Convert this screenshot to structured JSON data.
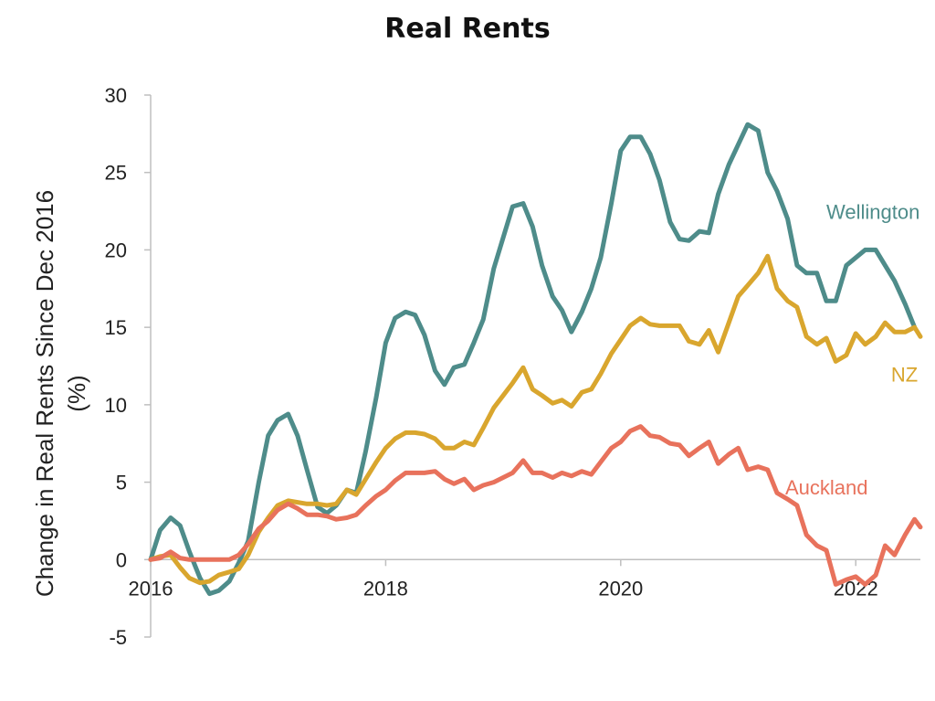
{
  "chart_data": {
    "type": "line",
    "title": "Real Rents",
    "ylabel_line1": "Change in Real Rents Since Dec 2016",
    "ylabel_line2": "(%)",
    "xlabel": "",
    "xlim": [
      2016.0,
      2022.55
    ],
    "ylim": [
      -5,
      30
    ],
    "y_ticks": [
      -5,
      0,
      5,
      10,
      15,
      20,
      25,
      30
    ],
    "x_ticks": [
      {
        "value": 2016,
        "label": "2016"
      },
      {
        "value": 2018,
        "label": "2018"
      },
      {
        "value": 2020,
        "label": "2020"
      },
      {
        "value": 2022,
        "label": "2022"
      }
    ],
    "grid": false,
    "legend": "inline labels",
    "series": [
      {
        "name": "Wellington",
        "color": "#4e8c8a",
        "points": [
          [
            2016.0,
            0
          ],
          [
            2016.08,
            1.9
          ],
          [
            2016.17,
            2.7
          ],
          [
            2016.25,
            2.2
          ],
          [
            2016.33,
            0.5
          ],
          [
            2016.42,
            -1.2
          ],
          [
            2016.5,
            -2.2
          ],
          [
            2016.58,
            -2.0
          ],
          [
            2016.67,
            -1.4
          ],
          [
            2016.75,
            -0.2
          ],
          [
            2016.83,
            1.2
          ],
          [
            2016.92,
            5.0
          ],
          [
            2017.0,
            8.0
          ],
          [
            2017.08,
            9.0
          ],
          [
            2017.17,
            9.4
          ],
          [
            2017.25,
            8.0
          ],
          [
            2017.33,
            5.8
          ],
          [
            2017.42,
            3.4
          ],
          [
            2017.5,
            3.0
          ],
          [
            2017.58,
            3.5
          ],
          [
            2017.67,
            4.5
          ],
          [
            2017.75,
            4.3
          ],
          [
            2017.83,
            7.0
          ],
          [
            2017.92,
            10.5
          ],
          [
            2018.0,
            14.0
          ],
          [
            2018.08,
            15.6
          ],
          [
            2018.17,
            16.0
          ],
          [
            2018.25,
            15.8
          ],
          [
            2018.33,
            14.5
          ],
          [
            2018.42,
            12.2
          ],
          [
            2018.5,
            11.3
          ],
          [
            2018.58,
            12.4
          ],
          [
            2018.67,
            12.6
          ],
          [
            2018.75,
            14.0
          ],
          [
            2018.83,
            15.5
          ],
          [
            2018.92,
            18.8
          ],
          [
            2019.0,
            20.8
          ],
          [
            2019.08,
            22.8
          ],
          [
            2019.17,
            23.0
          ],
          [
            2019.25,
            21.5
          ],
          [
            2019.33,
            19.0
          ],
          [
            2019.42,
            17.0
          ],
          [
            2019.5,
            16.1
          ],
          [
            2019.58,
            14.7
          ],
          [
            2019.67,
            16.0
          ],
          [
            2019.75,
            17.5
          ],
          [
            2019.83,
            19.5
          ],
          [
            2019.92,
            23.0
          ],
          [
            2020.0,
            26.4
          ],
          [
            2020.08,
            27.3
          ],
          [
            2020.17,
            27.3
          ],
          [
            2020.25,
            26.2
          ],
          [
            2020.33,
            24.5
          ],
          [
            2020.42,
            21.8
          ],
          [
            2020.5,
            20.7
          ],
          [
            2020.58,
            20.6
          ],
          [
            2020.67,
            21.2
          ],
          [
            2020.75,
            21.1
          ],
          [
            2020.83,
            23.6
          ],
          [
            2020.92,
            25.5
          ],
          [
            2021.0,
            26.8
          ],
          [
            2021.08,
            28.1
          ],
          [
            2021.17,
            27.7
          ],
          [
            2021.25,
            25.0
          ],
          [
            2021.33,
            23.8
          ],
          [
            2021.42,
            22.0
          ],
          [
            2021.5,
            19.0
          ],
          [
            2021.58,
            18.5
          ],
          [
            2021.67,
            18.5
          ],
          [
            2021.75,
            16.7
          ],
          [
            2021.83,
            16.7
          ],
          [
            2021.92,
            19.0
          ],
          [
            2022.0,
            19.5
          ],
          [
            2022.08,
            20.0
          ],
          [
            2022.17,
            20.0
          ],
          [
            2022.25,
            19.0
          ],
          [
            2022.33,
            18.0
          ],
          [
            2022.42,
            16.5
          ],
          [
            2022.5,
            15.0
          ]
        ]
      },
      {
        "name": "NZ",
        "color": "#d9a62e",
        "points": [
          [
            2016.0,
            0
          ],
          [
            2016.08,
            0.2
          ],
          [
            2016.17,
            0.3
          ],
          [
            2016.25,
            -0.5
          ],
          [
            2016.33,
            -1.2
          ],
          [
            2016.42,
            -1.5
          ],
          [
            2016.5,
            -1.4
          ],
          [
            2016.58,
            -1.0
          ],
          [
            2016.67,
            -0.8
          ],
          [
            2016.75,
            -0.6
          ],
          [
            2016.83,
            0.3
          ],
          [
            2016.92,
            1.8
          ],
          [
            2017.0,
            2.7
          ],
          [
            2017.08,
            3.5
          ],
          [
            2017.17,
            3.8
          ],
          [
            2017.25,
            3.7
          ],
          [
            2017.33,
            3.6
          ],
          [
            2017.42,
            3.6
          ],
          [
            2017.5,
            3.5
          ],
          [
            2017.58,
            3.6
          ],
          [
            2017.67,
            4.5
          ],
          [
            2017.75,
            4.2
          ],
          [
            2017.83,
            5.2
          ],
          [
            2017.92,
            6.3
          ],
          [
            2018.0,
            7.2
          ],
          [
            2018.08,
            7.8
          ],
          [
            2018.17,
            8.2
          ],
          [
            2018.25,
            8.2
          ],
          [
            2018.33,
            8.1
          ],
          [
            2018.42,
            7.8
          ],
          [
            2018.5,
            7.2
          ],
          [
            2018.58,
            7.2
          ],
          [
            2018.67,
            7.6
          ],
          [
            2018.75,
            7.4
          ],
          [
            2018.83,
            8.5
          ],
          [
            2018.92,
            9.8
          ],
          [
            2019.0,
            10.6
          ],
          [
            2019.08,
            11.4
          ],
          [
            2019.17,
            12.4
          ],
          [
            2019.25,
            11.0
          ],
          [
            2019.33,
            10.6
          ],
          [
            2019.42,
            10.1
          ],
          [
            2019.5,
            10.3
          ],
          [
            2019.58,
            9.9
          ],
          [
            2019.67,
            10.8
          ],
          [
            2019.75,
            11.0
          ],
          [
            2019.83,
            12.0
          ],
          [
            2019.92,
            13.3
          ],
          [
            2020.0,
            14.2
          ],
          [
            2020.08,
            15.1
          ],
          [
            2020.17,
            15.6
          ],
          [
            2020.25,
            15.2
          ],
          [
            2020.33,
            15.1
          ],
          [
            2020.42,
            15.1
          ],
          [
            2020.5,
            15.1
          ],
          [
            2020.58,
            14.1
          ],
          [
            2020.67,
            13.9
          ],
          [
            2020.75,
            14.8
          ],
          [
            2020.83,
            13.4
          ],
          [
            2020.92,
            15.3
          ],
          [
            2021.0,
            17.0
          ],
          [
            2021.08,
            17.7
          ],
          [
            2021.17,
            18.5
          ],
          [
            2021.25,
            19.6
          ],
          [
            2021.33,
            17.5
          ],
          [
            2021.42,
            16.7
          ],
          [
            2021.5,
            16.3
          ],
          [
            2021.58,
            14.4
          ],
          [
            2021.67,
            13.9
          ],
          [
            2021.75,
            14.3
          ],
          [
            2021.83,
            12.8
          ],
          [
            2021.92,
            13.2
          ],
          [
            2022.0,
            14.6
          ],
          [
            2022.08,
            13.9
          ],
          [
            2022.17,
            14.4
          ],
          [
            2022.25,
            15.3
          ],
          [
            2022.33,
            14.7
          ],
          [
            2022.42,
            14.7
          ],
          [
            2022.5,
            15.0
          ],
          [
            2022.55,
            14.4
          ]
        ]
      },
      {
        "name": "Auckland",
        "color": "#e8725c",
        "points": [
          [
            2016.0,
            0
          ],
          [
            2016.08,
            0.1
          ],
          [
            2016.17,
            0.5
          ],
          [
            2016.25,
            0.1
          ],
          [
            2016.33,
            0
          ],
          [
            2016.42,
            0
          ],
          [
            2016.5,
            0
          ],
          [
            2016.58,
            0
          ],
          [
            2016.67,
            0
          ],
          [
            2016.75,
            0.3
          ],
          [
            2016.83,
            1.0
          ],
          [
            2016.92,
            2.0
          ],
          [
            2017.0,
            2.5
          ],
          [
            2017.08,
            3.2
          ],
          [
            2017.17,
            3.6
          ],
          [
            2017.25,
            3.3
          ],
          [
            2017.33,
            2.9
          ],
          [
            2017.42,
            2.9
          ],
          [
            2017.5,
            2.8
          ],
          [
            2017.58,
            2.6
          ],
          [
            2017.67,
            2.7
          ],
          [
            2017.75,
            2.9
          ],
          [
            2017.83,
            3.5
          ],
          [
            2017.92,
            4.1
          ],
          [
            2018.0,
            4.5
          ],
          [
            2018.08,
            5.1
          ],
          [
            2018.17,
            5.6
          ],
          [
            2018.25,
            5.6
          ],
          [
            2018.33,
            5.6
          ],
          [
            2018.42,
            5.7
          ],
          [
            2018.5,
            5.2
          ],
          [
            2018.58,
            4.9
          ],
          [
            2018.67,
            5.2
          ],
          [
            2018.75,
            4.5
          ],
          [
            2018.83,
            4.8
          ],
          [
            2018.92,
            5.0
          ],
          [
            2019.0,
            5.3
          ],
          [
            2019.08,
            5.6
          ],
          [
            2019.17,
            6.4
          ],
          [
            2019.25,
            5.6
          ],
          [
            2019.33,
            5.6
          ],
          [
            2019.42,
            5.3
          ],
          [
            2019.5,
            5.6
          ],
          [
            2019.58,
            5.4
          ],
          [
            2019.67,
            5.7
          ],
          [
            2019.75,
            5.5
          ],
          [
            2019.83,
            6.3
          ],
          [
            2019.92,
            7.2
          ],
          [
            2020.0,
            7.6
          ],
          [
            2020.08,
            8.3
          ],
          [
            2020.17,
            8.6
          ],
          [
            2020.25,
            8.0
          ],
          [
            2020.33,
            7.9
          ],
          [
            2020.42,
            7.5
          ],
          [
            2020.5,
            7.4
          ],
          [
            2020.58,
            6.7
          ],
          [
            2020.67,
            7.2
          ],
          [
            2020.75,
            7.6
          ],
          [
            2020.83,
            6.2
          ],
          [
            2020.92,
            6.8
          ],
          [
            2021.0,
            7.2
          ],
          [
            2021.08,
            5.8
          ],
          [
            2021.17,
            6.0
          ],
          [
            2021.25,
            5.8
          ],
          [
            2021.33,
            4.3
          ],
          [
            2021.42,
            3.9
          ],
          [
            2021.5,
            3.5
          ],
          [
            2021.58,
            1.6
          ],
          [
            2021.67,
            0.9
          ],
          [
            2021.75,
            0.6
          ],
          [
            2021.83,
            -1.6
          ],
          [
            2021.92,
            -1.3
          ],
          [
            2022.0,
            -1.1
          ],
          [
            2022.08,
            -1.6
          ],
          [
            2022.17,
            -1.0
          ],
          [
            2022.25,
            0.9
          ],
          [
            2022.33,
            0.3
          ],
          [
            2022.42,
            1.6
          ],
          [
            2022.5,
            2.6
          ],
          [
            2022.55,
            2.1
          ]
        ],
        "label_pos": "right"
      }
    ]
  }
}
